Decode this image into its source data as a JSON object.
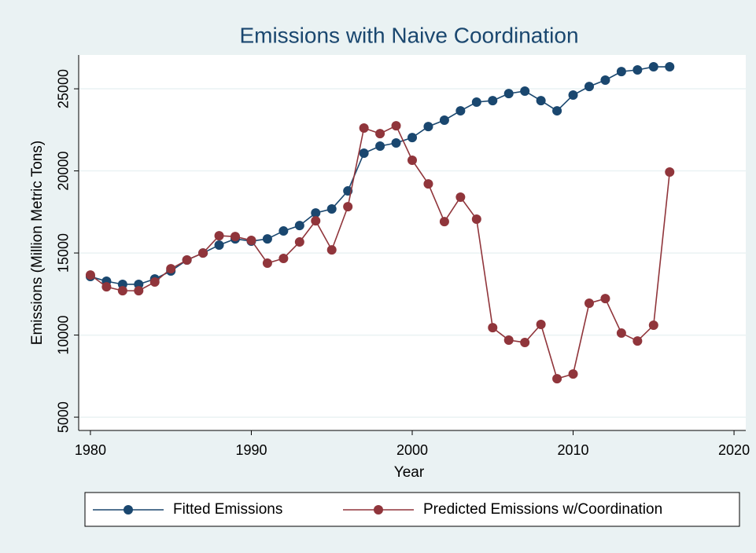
{
  "chart_data": {
    "type": "line",
    "title": "Emissions with Naive Coordination",
    "x_label": "Year",
    "y_label": "Emissions (Million Metric Tons)",
    "x": [
      1980,
      1981,
      1982,
      1983,
      1984,
      1985,
      1986,
      1987,
      1988,
      1989,
      1990,
      1991,
      1992,
      1993,
      1994,
      1995,
      1996,
      1997,
      1998,
      1999,
      2000,
      2001,
      2002,
      2003,
      2004,
      2005,
      2006,
      2007,
      2008,
      2009,
      2010,
      2011,
      2012,
      2013,
      2014,
      2015,
      2016
    ],
    "series": [
      {
        "name": "Fitted Emissions",
        "color": "#1a476f",
        "values": [
          13565,
          13280,
          13090,
          13090,
          13420,
          13900,
          14570,
          15000,
          15480,
          15860,
          15720,
          15860,
          16340,
          16670,
          17440,
          17680,
          18780,
          21080,
          21510,
          21700,
          22030,
          22700,
          23090,
          23660,
          24190,
          24280,
          24710,
          24860,
          24280,
          23660,
          24620,
          25140,
          25530,
          26050,
          26150,
          26340,
          26340
        ]
      },
      {
        "name": "Predicted Emissions w/Coordination",
        "color": "#90353b",
        "values": [
          13660,
          12940,
          12700,
          12700,
          13230,
          14040,
          14570,
          15000,
          16050,
          16000,
          15770,
          14380,
          14670,
          15670,
          16960,
          15190,
          17820,
          22610,
          22270,
          22750,
          20650,
          19210,
          16910,
          18400,
          17060,
          10450,
          9690,
          9550,
          10650,
          7340,
          7630,
          11940,
          12220,
          10120,
          9640,
          10600,
          19930
        ]
      }
    ],
    "xlim": [
      1979.27,
      2020.73
    ],
    "xticks": [
      1980,
      1990,
      2000,
      2010,
      2020
    ],
    "ylim": [
      4190,
      27060
    ],
    "yticks": [
      5000,
      10000,
      15000,
      20000,
      25000
    ],
    "grid": true,
    "legend_position": "bottom"
  }
}
